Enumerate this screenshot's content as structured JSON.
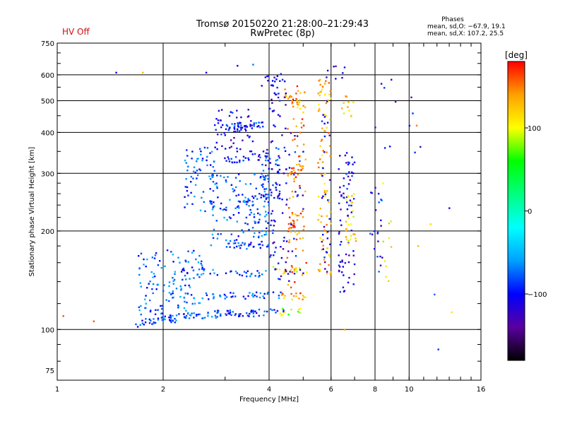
{
  "header": {
    "title_line1": "Tromsø 20150220 21:28:00–21:29:43",
    "title_line2": "RwPretec (8p)",
    "status": "HV Off",
    "status_color": "#d01010"
  },
  "phase_info": {
    "title": "Phases",
    "o_mode": "mean, sd,O: −67.9, 19.1",
    "x_mode": "mean, sd,X: 107.2, 25.5"
  },
  "chart_data": {
    "type": "scatter",
    "xlabel": "Frequency [MHz]",
    "ylabel": "Stationary phase Virtual Height [km]",
    "xscale": "log",
    "yscale": "log",
    "xlim": [
      1,
      16
    ],
    "ylim": [
      70,
      750
    ],
    "xticks": [
      1,
      2,
      4,
      6,
      8,
      10,
      16
    ],
    "xtick_labels": [
      "1",
      "2",
      "4",
      "6",
      "8",
      "10",
      "16"
    ],
    "yticks": [
      75,
      100,
      200,
      300,
      400,
      500,
      600,
      750
    ],
    "ytick_labels": [
      "75",
      "100",
      "200",
      "300",
      "400",
      "500",
      "600",
      "750"
    ],
    "grid": true,
    "colorbar": {
      "label": "[deg]",
      "range": [
        -180,
        180
      ],
      "ticks": [
        100,
        0,
        -100
      ],
      "tick_labels": [
        "100",
        "0",
        "−100"
      ],
      "colors": [
        "#000000",
        "#5a00a0",
        "#0000ff",
        "#00a0ff",
        "#00ffff",
        "#00ff80",
        "#00ff00",
        "#ffff00",
        "#ffa000",
        "#ff0000"
      ]
    },
    "point_color_field": "phase_deg",
    "series": [
      {
        "kind": "trace",
        "f": [
          1.62,
          2.2
        ],
        "h": [
          104,
          108
        ],
        "phase": -85,
        "n": 30
      },
      {
        "kind": "trace",
        "f": [
          2.0,
          3.0
        ],
        "h": [
          108,
          112
        ],
        "phase": -75,
        "n": 45
      },
      {
        "kind": "trace",
        "f": [
          3.0,
          4.4
        ],
        "h": [
          112,
          113
        ],
        "phase": -95,
        "n": 45
      },
      {
        "kind": "trace",
        "f": [
          4.3,
          5.0
        ],
        "h": [
          113,
          114
        ],
        "phase": 95,
        "n": 12
      },
      {
        "kind": "trace",
        "f": [
          2.6,
          4.3
        ],
        "h": [
          126,
          128
        ],
        "phase": -85,
        "n": 40
      },
      {
        "kind": "trace",
        "f": [
          4.2,
          5.2
        ],
        "h": [
          126,
          127
        ],
        "phase": 140,
        "n": 15
      },
      {
        "kind": "trace",
        "f": [
          2.2,
          4.0
        ],
        "h": [
          152,
          148
        ],
        "phase": -80,
        "n": 40
      },
      {
        "kind": "trace",
        "f": [
          4.1,
          5.2
        ],
        "h": [
          152,
          150
        ],
        "phase": 110,
        "n": 15
      },
      {
        "kind": "trace",
        "f": [
          3.0,
          4.0
        ],
        "h": [
          180,
          182
        ],
        "phase": -90,
        "n": 28
      },
      {
        "kind": "trace",
        "f": [
          3.2,
          4.2
        ],
        "h": [
          240,
          265
        ],
        "phase": -95,
        "n": 25
      },
      {
        "kind": "trace",
        "f": [
          3.0,
          4.0
        ],
        "h": [
          330,
          340
        ],
        "phase": -100,
        "n": 30
      },
      {
        "kind": "trace",
        "f": [
          3.0,
          3.9
        ],
        "h": [
          415,
          425
        ],
        "phase": -95,
        "n": 35
      },
      {
        "kind": "trace",
        "f": [
          4.5,
          5.0
        ],
        "h": [
          200,
          230
        ],
        "phase": 155,
        "n": 18
      },
      {
        "kind": "trace",
        "f": [
          4.5,
          5.0
        ],
        "h": [
          300,
          320
        ],
        "phase": 150,
        "n": 15
      },
      {
        "kind": "trace",
        "f": [
          4.4,
          5.0
        ],
        "h": [
          530,
          470
        ],
        "phase": 130,
        "n": 18
      },
      {
        "kind": "cloud",
        "f": [
          1.7,
          2.6
        ],
        "h": [
          110,
          175
        ],
        "phase": -75,
        "n": 130
      },
      {
        "kind": "cloud",
        "f": [
          2.3,
          2.8
        ],
        "h": [
          230,
          360
        ],
        "phase": -80,
        "n": 70
      },
      {
        "kind": "cloud",
        "f": [
          2.7,
          3.3
        ],
        "h": [
          180,
          300
        ],
        "phase": -80,
        "n": 60
      },
      {
        "kind": "cloud",
        "f": [
          3.3,
          4.0
        ],
        "h": [
          190,
          300
        ],
        "phase": -80,
        "n": 70
      },
      {
        "kind": "cloud",
        "f": [
          3.8,
          4.3
        ],
        "h": [
          250,
          360
        ],
        "phase": -95,
        "n": 45
      },
      {
        "kind": "cloud",
        "f": [
          2.8,
          3.6
        ],
        "h": [
          350,
          470
        ],
        "phase": -110,
        "n": 60
      },
      {
        "kind": "cloud",
        "f": [
          4.0,
          4.5
        ],
        "h": [
          140,
          600
        ],
        "phase": -110,
        "n": 70
      },
      {
        "kind": "cloud",
        "f": [
          4.5,
          5.1
        ],
        "h": [
          120,
          560
        ],
        "phase": 150,
        "n": 80
      },
      {
        "kind": "cloud",
        "f": [
          4.4,
          5.0
        ],
        "h": [
          140,
          400
        ],
        "phase": -110,
        "n": 30
      },
      {
        "kind": "cloud",
        "f": [
          5.5,
          6.0
        ],
        "h": [
          140,
          600
        ],
        "phase": 130,
        "n": 85
      },
      {
        "kind": "cloud",
        "f": [
          5.6,
          6.0
        ],
        "h": [
          150,
          550
        ],
        "phase": -110,
        "n": 30
      },
      {
        "kind": "cloud",
        "f": [
          6.3,
          7.0
        ],
        "h": [
          130,
          350
        ],
        "phase": -110,
        "n": 75
      },
      {
        "kind": "cloud",
        "f": [
          6.6,
          7.1
        ],
        "h": [
          180,
          260
        ],
        "phase": 115,
        "n": 25
      },
      {
        "kind": "cloud",
        "f": [
          6.4,
          7.0
        ],
        "h": [
          440,
          520
        ],
        "phase": 120,
        "n": 12
      },
      {
        "kind": "cloud",
        "f": [
          7.7,
          8.4
        ],
        "h": [
          150,
          280
        ],
        "phase": -100,
        "n": 22
      },
      {
        "kind": "cloud",
        "f": [
          8.4,
          8.9
        ],
        "h": [
          140,
          300
        ],
        "phase": 100,
        "n": 10
      },
      {
        "kind": "cloud",
        "f": [
          3.8,
          4.4
        ],
        "h": [
          620,
          500
        ],
        "phase": -95,
        "n": 14
      },
      {
        "kind": "cloud",
        "f": [
          5.8,
          6.6
        ],
        "h": [
          580,
          650
        ],
        "phase": -110,
        "n": 8
      },
      {
        "kind": "cloud",
        "f": [
          8.0,
          11.0
        ],
        "h": [
          300,
          600
        ],
        "phase": -110,
        "n": 12
      },
      {
        "kind": "point",
        "f": 1.04,
        "h": 110,
        "phase": 160
      },
      {
        "kind": "point",
        "f": 1.27,
        "h": 106,
        "phase": 160
      },
      {
        "kind": "point",
        "f": 1.47,
        "h": 610,
        "phase": -110
      },
      {
        "kind": "point",
        "f": 1.75,
        "h": 610,
        "phase": 130
      },
      {
        "kind": "point",
        "f": 2.65,
        "h": 610,
        "phase": -110
      },
      {
        "kind": "point",
        "f": 3.25,
        "h": 640,
        "phase": -100
      },
      {
        "kind": "point",
        "f": 3.6,
        "h": 645,
        "phase": -70
      },
      {
        "kind": "point",
        "f": 6.55,
        "h": 100,
        "phase": 140
      },
      {
        "kind": "point",
        "f": 10.5,
        "h": 420,
        "phase": 150
      },
      {
        "kind": "point",
        "f": 10.6,
        "h": 180,
        "phase": 130
      },
      {
        "kind": "point",
        "f": 13.0,
        "h": 235,
        "phase": -105
      },
      {
        "kind": "point",
        "f": 13.2,
        "h": 113,
        "phase": 110
      },
      {
        "kind": "point",
        "f": 12.1,
        "h": 87,
        "phase": -90
      },
      {
        "kind": "point",
        "f": 11.8,
        "h": 128,
        "phase": -75
      },
      {
        "kind": "point",
        "f": 11.5,
        "h": 210,
        "phase": 115
      }
    ]
  }
}
